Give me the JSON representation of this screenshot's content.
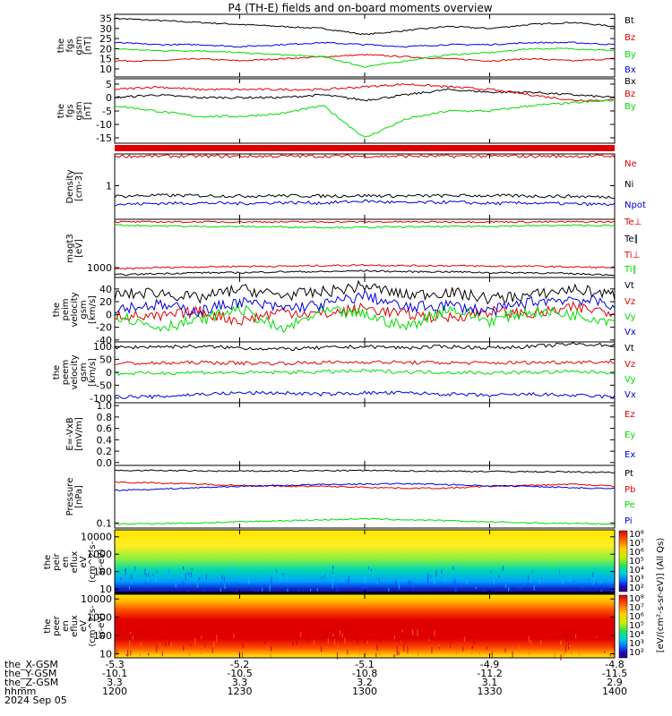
{
  "title": "P4 (TH-E) fields and on-board moments overview",
  "colors": {
    "black": "#000000",
    "red": "#e00000",
    "green": "#00dd00",
    "blue": "#0000dd"
  },
  "panels": [
    {
      "id": "fgs1",
      "ylabel": [
        "the",
        "fgs",
        "gsm",
        "[nT]"
      ],
      "ylim": [
        6,
        37
      ],
      "scale": "linear",
      "ticks": [
        {
          "v": 35,
          "label": "35"
        },
        {
          "v": 30,
          "label": "30"
        },
        {
          "v": 25,
          "label": "25"
        },
        {
          "v": 20,
          "label": "20"
        },
        {
          "v": 15,
          "label": "15"
        },
        {
          "v": 10,
          "label": "10"
        }
      ],
      "legend": [
        {
          "text": "Bt",
          "color": "black"
        },
        {
          "text": "Bz",
          "color": "red"
        },
        {
          "text": "By",
          "color": "green"
        },
        {
          "text": "Bx",
          "color": "blue"
        }
      ]
    },
    {
      "id": "fgs2",
      "ylabel": [
        "the",
        "fgs",
        "gsm",
        "[nT]"
      ],
      "ylim": [
        -17,
        7
      ],
      "scale": "linear",
      "ticks": [
        {
          "v": 5,
          "label": "5"
        },
        {
          "v": 0,
          "label": "0"
        },
        {
          "v": -5,
          "label": "-5"
        },
        {
          "v": -10,
          "label": "-10"
        },
        {
          "v": -15,
          "label": "-15"
        }
      ],
      "legend": [
        {
          "text": "Bx",
          "color": "black"
        },
        {
          "text": "Bz",
          "color": "red"
        },
        {
          "text": "By",
          "color": "green"
        }
      ]
    },
    {
      "id": "dens",
      "ylabel": [
        "Density",
        "[cm-3]"
      ],
      "ylim": [
        0.22,
        4.2
      ],
      "scale": "log",
      "ticks": [
        {
          "v": 1,
          "label": "1"
        }
      ],
      "legend": [
        {
          "text": "Ne",
          "color": "red"
        },
        {
          "text": "Ni",
          "color": "black"
        },
        {
          "text": "Npot",
          "color": "blue"
        }
      ]
    },
    {
      "id": "temp",
      "ylabel": [
        "magt3",
        "[eV]"
      ],
      "ylim": [
        500,
        30000
      ],
      "scale": "log",
      "ticks": [
        {
          "v": 1000,
          "label": "1000"
        }
      ],
      "legend": [
        {
          "text": "Te⊥",
          "color": "red"
        },
        {
          "text": "Te∥",
          "color": "black"
        },
        {
          "text": "Ti⊥",
          "color": "red"
        },
        {
          "text": "Ti∥",
          "color": "green"
        }
      ]
    },
    {
      "id": "vi",
      "ylabel": [
        "the",
        "peim",
        "velocity",
        "gsm",
        "[km/s]"
      ],
      "ylim": [
        -43,
        58
      ],
      "scale": "linear",
      "ticks": [
        {
          "v": 40,
          "label": "40"
        },
        {
          "v": 20,
          "label": "20"
        },
        {
          "v": 0,
          "label": "0"
        },
        {
          "v": -20,
          "label": "-20"
        },
        {
          "v": -40,
          "label": "-40"
        }
      ],
      "legend": [
        {
          "text": "Vt",
          "color": "black"
        },
        {
          "text": "Vz",
          "color": "red"
        },
        {
          "text": "Vy",
          "color": "green"
        },
        {
          "text": "Vx",
          "color": "blue"
        }
      ]
    },
    {
      "id": "ve",
      "ylabel": [
        "the",
        "peem",
        "velocity",
        "gsm",
        "[km/s]"
      ],
      "ylim": [
        -118,
        118
      ],
      "scale": "linear",
      "ticks": [
        {
          "v": 100,
          "label": "100"
        },
        {
          "v": 50,
          "label": "50"
        },
        {
          "v": 0,
          "label": "0"
        },
        {
          "v": -50,
          "label": "-50"
        },
        {
          "v": -100,
          "label": "-100"
        }
      ],
      "legend": [
        {
          "text": "Vt",
          "color": "black"
        },
        {
          "text": "Vz",
          "color": "red"
        },
        {
          "text": "Vy",
          "color": "green"
        },
        {
          "text": "Vx",
          "color": "blue"
        }
      ]
    },
    {
      "id": "efield",
      "ylabel": [
        "E=-VxB",
        "[mV/m]"
      ],
      "ylim": [
        -0.05,
        1.05
      ],
      "scale": "linear",
      "ticks": [
        {
          "v": 1.0,
          "label": "1.0"
        },
        {
          "v": 0.8,
          "label": "0.8"
        },
        {
          "v": 0.6,
          "label": "0.6"
        },
        {
          "v": 0.4,
          "label": "0.4"
        },
        {
          "v": 0.2,
          "label": "0.2"
        },
        {
          "v": 0.0,
          "label": "0.0"
        }
      ],
      "legend": [
        {
          "text": "Ez",
          "color": "red"
        },
        {
          "text": "Ey",
          "color": "green"
        },
        {
          "text": "Ex",
          "color": "blue"
        }
      ]
    },
    {
      "id": "press",
      "ylabel": [
        "Pressure",
        "[nPa]"
      ],
      "ylim": [
        0.08,
        1.25
      ],
      "scale": "log",
      "ticks": [
        {
          "v": 0.1,
          "label": "0.1"
        }
      ],
      "legend": [
        {
          "text": "Pt",
          "color": "black"
        },
        {
          "text": "Pb",
          "color": "red"
        },
        {
          "text": "Pe",
          "color": "green"
        },
        {
          "text": "Pi",
          "color": "blue"
        }
      ]
    },
    {
      "id": "ispec",
      "ylabel": [
        "the",
        "peir",
        "en",
        "eflux",
        "eV",
        "(cm^2-s-",
        "sr-eV)"
      ],
      "ylim": [
        5,
        25000
      ],
      "scale": "log",
      "ticks": [
        {
          "v": 10000,
          "label": "10000"
        },
        {
          "v": 1000,
          "label": "1000"
        },
        {
          "v": 100,
          "label": "100"
        },
        {
          "v": 10,
          "label": "10"
        }
      ],
      "legend": []
    },
    {
      "id": "espec",
      "ylabel": [
        "the",
        "peer",
        "en",
        "eflux",
        "eV",
        "(cm^2-s-",
        "sr-eV)"
      ],
      "ylim": [
        6,
        18000
      ],
      "scale": "log",
      "ticks": [
        {
          "v": 10000,
          "label": "10000"
        },
        {
          "v": 1000,
          "label": "1000"
        },
        {
          "v": 100,
          "label": "100"
        },
        {
          "v": 10,
          "label": "10"
        }
      ],
      "legend": []
    }
  ],
  "colorbar": {
    "label": "[eV/(cm²-s-sr-eV)] (All Qs)",
    "ticks": [
      "10⁸",
      "10⁷",
      "10⁶",
      "10⁵",
      "10⁴",
      "10³",
      "10²"
    ]
  },
  "orbit": {
    "rows": [
      {
        "label": "the_X-GSM",
        "values": [
          "-5.3",
          "-5.2",
          "-5.1",
          "-4.9",
          "-4.8"
        ]
      },
      {
        "label": "the_Y-GSM",
        "values": [
          "-10.1",
          "-10.5",
          "-10.8",
          "-11.2",
          "-11.5"
        ]
      },
      {
        "label": "the_Z-GSM",
        "values": [
          "3.3",
          "3.3",
          "3.2",
          "3.1",
          "2.9"
        ]
      },
      {
        "label": "hhmm",
        "values": [
          "1200",
          "1230",
          "1300",
          "1330",
          "1400"
        ]
      }
    ],
    "date": "2024 Sep 05"
  },
  "chart_data": {
    "type": "line",
    "title": "P4 (TH-E) fields and on-board moments overview",
    "x_range": [
      "2024-09-05 12:00",
      "2024-09-05 14:00"
    ],
    "x_ticks": [
      "12:00",
      "12:30",
      "13:00",
      "13:30",
      "14:00"
    ],
    "times": [
      "12:00",
      "12:10",
      "12:20",
      "12:30",
      "12:40",
      "12:50",
      "13:00",
      "13:10",
      "13:20",
      "13:30",
      "13:40",
      "13:50",
      "14:00"
    ],
    "panels": {
      "fgs1": {
        "series": [
          {
            "name": "Bt",
            "color": "black",
            "values": [
              35,
              34,
              33,
              32,
              31,
              30,
              27,
              29,
              31,
              30,
              32,
              33,
              31
            ]
          },
          {
            "name": "Bz",
            "color": "red",
            "values": [
              14,
              14,
              15,
              14,
              15,
              16,
              17,
              16,
              15,
              14,
              15,
              14,
              15
            ]
          },
          {
            "name": "By",
            "color": "green",
            "values": [
              20,
              19,
              19,
              18,
              17,
              16,
              11,
              14,
              17,
              18,
              20,
              20,
              19
            ]
          },
          {
            "name": "Bx",
            "color": "blue",
            "values": [
              23,
              22,
              22,
              21,
              22,
              23,
              22,
              21,
              22,
              22,
              23,
              23,
              22
            ]
          }
        ]
      },
      "fgs2": {
        "series": [
          {
            "name": "Bx",
            "color": "black",
            "values": [
              0,
              1,
              0,
              0,
              0,
              1,
              -1,
              1,
              3,
              2,
              2,
              1,
              0
            ]
          },
          {
            "name": "Bz",
            "color": "red",
            "values": [
              3,
              4,
              3,
              3,
              3,
              3,
              4,
              5,
              4,
              3,
              1,
              -1,
              -1
            ]
          },
          {
            "name": "By",
            "color": "green",
            "values": [
              -3,
              -5,
              -7,
              -7,
              -6,
              -3,
              -15,
              -8,
              -5,
              -5,
              -3,
              -2,
              -1
            ]
          }
        ]
      },
      "dens": {
        "series": [
          {
            "name": "Ne",
            "color": "red",
            "values": [
              3.8,
              3.8,
              3.8,
              3.8,
              3.8,
              3.8,
              3.8,
              3.8,
              3.8,
              3.8,
              3.8,
              3.8,
              3.8
            ]
          },
          {
            "name": "Ni",
            "color": "black",
            "values": [
              0.62,
              0.65,
              0.64,
              0.63,
              0.64,
              0.63,
              0.64,
              0.63,
              0.64,
              0.64,
              0.63,
              0.62,
              0.6
            ]
          },
          {
            "name": "Npot",
            "color": "blue",
            "values": [
              0.43,
              0.45,
              0.46,
              0.45,
              0.47,
              0.46,
              0.5,
              0.46,
              0.48,
              0.45,
              0.46,
              0.44,
              0.43
            ]
          }
        ]
      },
      "temp": {
        "series": [
          {
            "name": "Te⊥",
            "color": "red",
            "values": [
              900,
              1000,
              1050,
              1100,
              1100,
              1150,
              1200,
              1150,
              1150,
              1100,
              1100,
              1050,
              1000
            ]
          },
          {
            "name": "Te∥",
            "color": "black",
            "values": [
              600,
              650,
              700,
              700,
              750,
              750,
              800,
              750,
              750,
              700,
              700,
              650,
              600
            ]
          },
          {
            "name": "Ti⊥",
            "color": "red",
            "values": [
              25000,
              25000,
              25000,
              25000,
              25000,
              25000,
              25000,
              25000,
              25000,
              25000,
              25000,
              25000,
              25000
            ]
          },
          {
            "name": "Ti∥",
            "color": "green",
            "values": [
              20000,
              19000,
              18000,
              18000,
              17500,
              17000,
              17000,
              17500,
              18000,
              18500,
              19000,
              19500,
              19000
            ]
          }
        ]
      },
      "vi": {
        "series": [
          {
            "name": "Vt",
            "color": "black",
            "values": [
              30,
              35,
              25,
              40,
              30,
              35,
              45,
              30,
              35,
              25,
              30,
              40,
              30
            ]
          },
          {
            "name": "Vz",
            "color": "red",
            "values": [
              0,
              -5,
              5,
              -10,
              5,
              0,
              10,
              0,
              -5,
              5,
              0,
              10,
              5
            ]
          },
          {
            "name": "Vy",
            "color": "green",
            "values": [
              0,
              -20,
              -10,
              10,
              -25,
              5,
              0,
              -20,
              10,
              -10,
              5,
              0,
              -10
            ]
          },
          {
            "name": "Vx",
            "color": "blue",
            "values": [
              10,
              15,
              5,
              20,
              10,
              15,
              30,
              10,
              15,
              5,
              20,
              25,
              15
            ]
          }
        ]
      },
      "ve": {
        "series": [
          {
            "name": "Vt",
            "color": "black",
            "values": [
              95,
              100,
              100,
              95,
              90,
              95,
              100,
              95,
              100,
              95,
              100,
              110,
              105
            ]
          },
          {
            "name": "Vz",
            "color": "red",
            "values": [
              35,
              35,
              38,
              36,
              35,
              38,
              40,
              38,
              37,
              36,
              38,
              40,
              40
            ]
          },
          {
            "name": "Vy",
            "color": "green",
            "values": [
              -5,
              -3,
              0,
              -2,
              0,
              2,
              5,
              2,
              0,
              -2,
              0,
              2,
              0
            ]
          },
          {
            "name": "Vx",
            "color": "blue",
            "values": [
              -95,
              -95,
              -85,
              -80,
              -80,
              -85,
              -80,
              -80,
              -85,
              -90,
              -85,
              -90,
              -95
            ]
          }
        ]
      },
      "efield": {
        "series": [
          {
            "name": "Ez",
            "color": "red",
            "values": []
          },
          {
            "name": "Ey",
            "color": "green",
            "values": []
          },
          {
            "name": "Ex",
            "color": "blue",
            "values": []
          }
        ]
      },
      "press": {
        "series": [
          {
            "name": "Pt",
            "color": "black",
            "values": [
              1.0,
              1.0,
              0.98,
              0.97,
              0.98,
              0.99,
              1.0,
              0.98,
              0.97,
              0.96,
              0.95,
              0.94,
              0.92
            ]
          },
          {
            "name": "Pb",
            "color": "red",
            "values": [
              0.6,
              0.58,
              0.55,
              0.52,
              0.5,
              0.5,
              0.48,
              0.46,
              0.46,
              0.5,
              0.52,
              0.55,
              0.5
            ]
          },
          {
            "name": "Pe",
            "color": "green",
            "values": [
              0.095,
              0.098,
              0.1,
              0.105,
              0.11,
              0.115,
              0.12,
              0.115,
              0.11,
              0.105,
              0.1,
              0.098,
              0.095
            ]
          },
          {
            "name": "Pi",
            "color": "blue",
            "values": [
              0.42,
              0.44,
              0.47,
              0.5,
              0.52,
              0.54,
              0.55,
              0.56,
              0.54,
              0.51,
              0.5,
              0.47,
              0.45
            ]
          }
        ]
      }
    }
  }
}
